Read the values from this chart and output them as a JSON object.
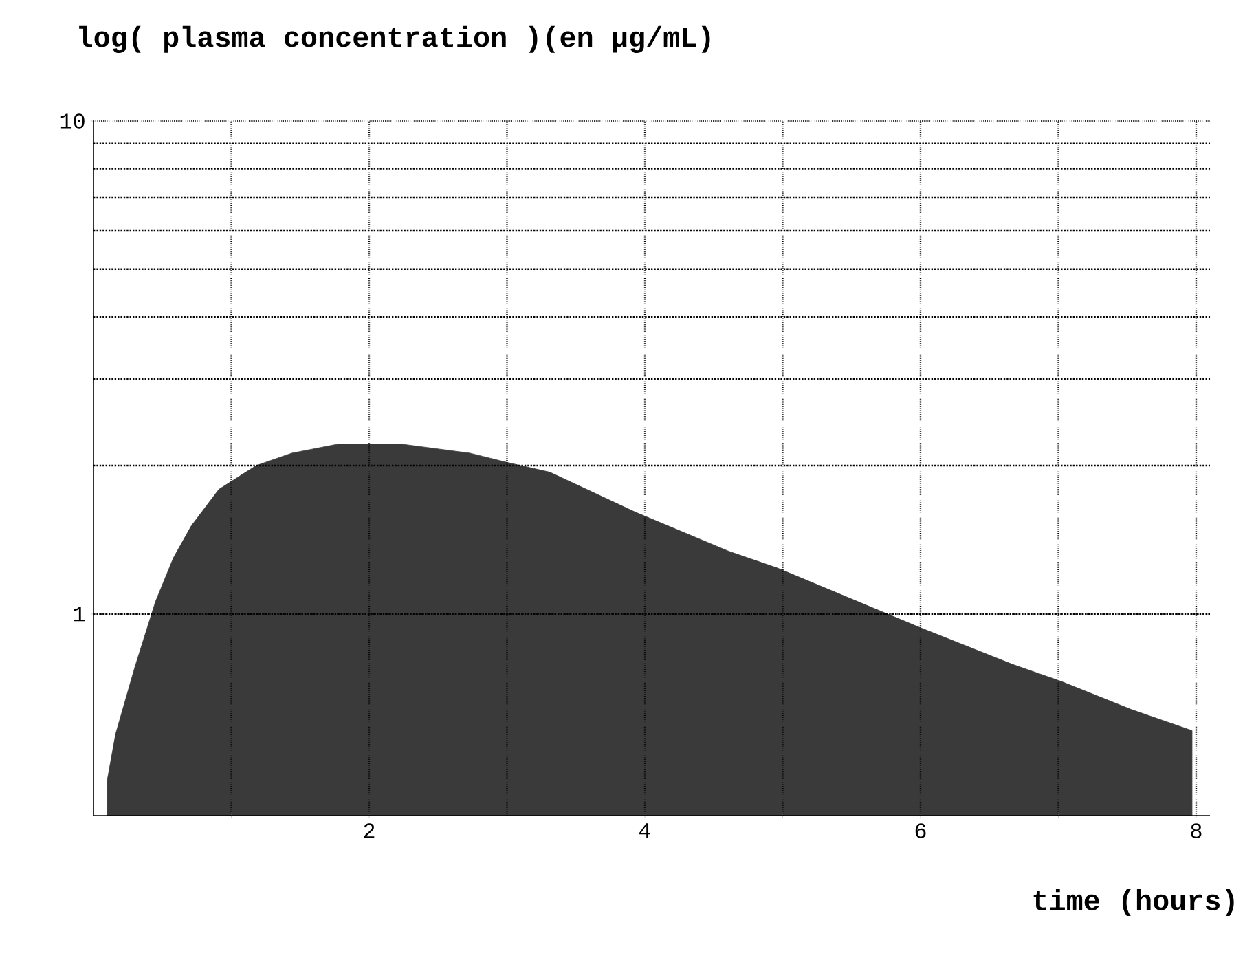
{
  "chart_data": {
    "type": "area",
    "title": "log( plasma concentration )(en µg/mL)",
    "xlabel": "time (hours)",
    "x": [
      0.1,
      0.16,
      0.3,
      0.45,
      0.58,
      0.71,
      0.91,
      1.18,
      1.44,
      1.77,
      2.24,
      2.73,
      3.0,
      3.31,
      3.93,
      4.61,
      4.96,
      5.65,
      5.99,
      6.67,
      7.02,
      7.53,
      7.97
    ],
    "values": [
      0.46,
      0.57,
      0.78,
      1.06,
      1.3,
      1.51,
      1.79,
      2.0,
      2.12,
      2.21,
      2.21,
      2.12,
      2.03,
      1.94,
      1.61,
      1.34,
      1.24,
      1.03,
      0.94,
      0.79,
      0.73,
      0.64,
      0.58
    ],
    "color": "#3a3a3a",
    "log": "y",
    "xlim": [
      0,
      8.1
    ],
    "ylim": [
      0.39,
      10
    ],
    "xticks": [
      {
        "value": 1,
        "label": null
      },
      2,
      {
        "value": 3,
        "label": null
      },
      4,
      {
        "value": 5,
        "label": null
      },
      6,
      {
        "value": 7,
        "label": null
      },
      8
    ],
    "yticks": [
      1,
      10
    ],
    "grid": true
  }
}
